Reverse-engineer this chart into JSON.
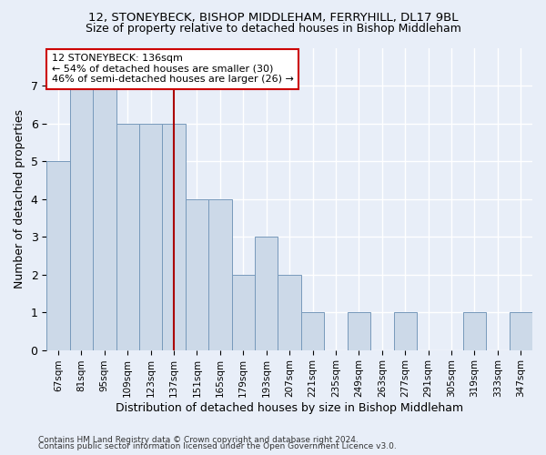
{
  "title1": "12, STONEYBECK, BISHOP MIDDLEHAM, FERRYHILL, DL17 9BL",
  "title2": "Size of property relative to detached houses in Bishop Middleham",
  "xlabel": "Distribution of detached houses by size in Bishop Middleham",
  "ylabel": "Number of detached properties",
  "footnote1": "Contains HM Land Registry data © Crown copyright and database right 2024.",
  "footnote2": "Contains public sector information licensed under the Open Government Licence v3.0.",
  "categories": [
    "67sqm",
    "81sqm",
    "95sqm",
    "109sqm",
    "123sqm",
    "137sqm",
    "151sqm",
    "165sqm",
    "179sqm",
    "193sqm",
    "207sqm",
    "221sqm",
    "235sqm",
    "249sqm",
    "263sqm",
    "277sqm",
    "291sqm",
    "305sqm",
    "319sqm",
    "333sqm",
    "347sqm"
  ],
  "values": [
    5,
    7,
    7,
    6,
    6,
    6,
    4,
    4,
    2,
    3,
    2,
    1,
    0,
    1,
    0,
    1,
    0,
    0,
    1,
    0,
    1
  ],
  "bar_color": "#ccd9e8",
  "bar_edge_color": "#7799bb",
  "highlight_bar_index": 5,
  "highlight_line_color": "#aa0000",
  "annotation_line1": "12 STONEYBECK: 136sqm",
  "annotation_line2": "← 54% of detached houses are smaller (30)",
  "annotation_line3": "46% of semi-detached houses are larger (26) →",
  "annotation_box_color": "#ffffff",
  "annotation_box_edge_color": "#cc0000",
  "ylim": [
    0,
    8
  ],
  "yticks": [
    0,
    1,
    2,
    3,
    4,
    5,
    6,
    7
  ],
  "background_color": "#e8eef8",
  "plot_background_color": "#e8eef8",
  "grid_color": "#ffffff",
  "title1_fontsize": 9.5,
  "title2_fontsize": 9,
  "xlabel_fontsize": 9,
  "ylabel_fontsize": 9,
  "annotation_fontsize": 8
}
